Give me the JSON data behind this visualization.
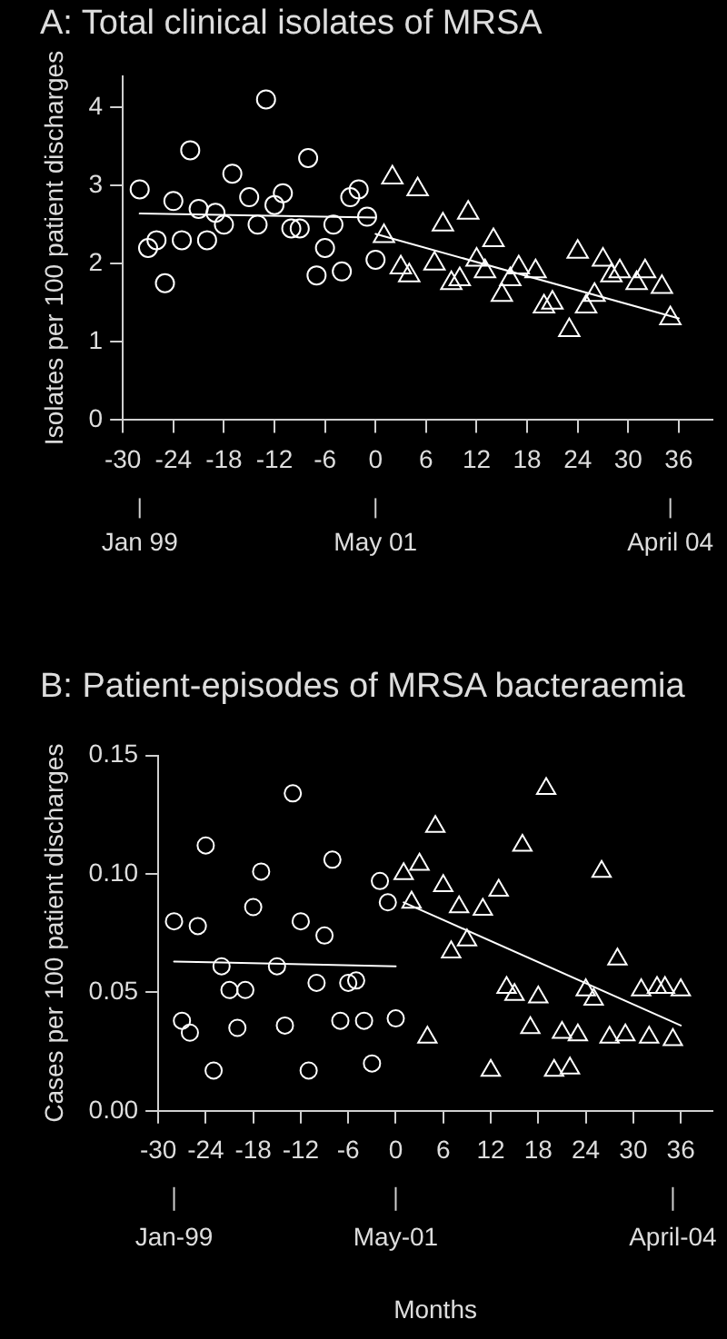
{
  "chart_data": [
    {
      "type": "scatter",
      "title": "A: Total clinical isolates of MRSA",
      "ylabel": "Isolates per 100 patient discharges",
      "xlim": [
        -30,
        40
      ],
      "xticks": [
        -30,
        -24,
        -18,
        -12,
        -6,
        0,
        6,
        12,
        18,
        24,
        30,
        36
      ],
      "ylim": [
        0,
        4.4
      ],
      "yticks": [
        0,
        1,
        2,
        3,
        4
      ],
      "annotations": [
        {
          "text": "Jan 99",
          "x": -28
        },
        {
          "text": "May 01",
          "x": 0
        },
        {
          "text": "April 04",
          "x": 35
        }
      ],
      "series": [
        {
          "marker": "circle",
          "color": "#ffffff",
          "x": [
            -28,
            -27,
            -26,
            -25,
            -24,
            -23,
            -22,
            -21,
            -20,
            -19,
            -18,
            -17,
            -15,
            -14,
            -13,
            -12,
            -11,
            -10,
            -9,
            -8,
            -7,
            -6,
            -5,
            -4,
            -3,
            -2,
            -1,
            0
          ],
          "values": [
            2.95,
            2.2,
            2.3,
            1.75,
            2.8,
            2.3,
            3.45,
            2.7,
            2.3,
            2.65,
            2.5,
            3.15,
            2.85,
            2.5,
            4.1,
            2.75,
            2.9,
            2.45,
            2.45,
            3.35,
            1.85,
            2.2,
            2.5,
            1.9,
            2.85,
            2.95,
            2.6,
            2.05
          ]
        },
        {
          "marker": "triangle",
          "color": "#ffffff",
          "x": [
            1,
            2,
            3,
            4,
            5,
            7,
            8,
            9,
            10,
            11,
            12,
            13,
            14,
            15,
            16,
            17,
            19,
            20,
            21,
            23,
            24,
            25,
            26,
            27,
            28,
            29,
            31,
            32,
            34,
            35
          ],
          "values": [
            2.35,
            3.1,
            1.95,
            1.85,
            2.95,
            2.0,
            2.5,
            1.75,
            1.8,
            2.65,
            2.05,
            1.9,
            2.3,
            1.6,
            1.8,
            1.95,
            1.9,
            1.45,
            1.5,
            1.15,
            2.15,
            1.45,
            1.6,
            2.05,
            1.85,
            1.9,
            1.75,
            1.9,
            1.7,
            1.3
          ]
        },
        {
          "type": "line",
          "marker": "none",
          "color": "#ffffff",
          "x": [
            -28,
            0
          ],
          "values": [
            2.64,
            2.59
          ]
        },
        {
          "type": "line",
          "marker": "none",
          "color": "#ffffff",
          "x": [
            0,
            36
          ],
          "values": [
            2.38,
            1.3
          ]
        }
      ]
    },
    {
      "type": "scatter",
      "title": "B: Patient-episodes of MRSA bacteraemia",
      "ylabel": "Cases per 100 patient discharges",
      "xlabel": "Months",
      "xlim": [
        -30,
        40
      ],
      "xticks": [
        -30,
        -24,
        -18,
        -12,
        -6,
        0,
        6,
        12,
        18,
        24,
        30,
        36
      ],
      "ylim": [
        0,
        0.15
      ],
      "yticks": [
        {
          "value": 0,
          "label": "0.00"
        },
        {
          "value": 0.05,
          "label": "0.05"
        },
        {
          "value": 0.1,
          "label": "0.10"
        },
        {
          "value": 0.15,
          "label": "0.15"
        }
      ],
      "annotations": [
        {
          "text": "Jan-99",
          "x": -28
        },
        {
          "text": "May-01",
          "x": 0
        },
        {
          "text": "April-04",
          "x": 35
        }
      ],
      "series": [
        {
          "marker": "circle",
          "color": "#ffffff",
          "x": [
            -28,
            -27,
            -26,
            -25,
            -24,
            -23,
            -22,
            -21,
            -20,
            -19,
            -18,
            -17,
            -15,
            -14,
            -13,
            -12,
            -11,
            -10,
            -9,
            -8,
            -7,
            -6,
            -5,
            -4,
            -3,
            -2,
            -1,
            0
          ],
          "values": [
            0.08,
            0.038,
            0.033,
            0.078,
            0.112,
            0.017,
            0.061,
            0.051,
            0.035,
            0.051,
            0.086,
            0.101,
            0.061,
            0.036,
            0.134,
            0.08,
            0.017,
            0.054,
            0.074,
            0.106,
            0.038,
            0.054,
            0.055,
            0.038,
            0.02,
            0.097,
            0.088,
            0.039
          ]
        },
        {
          "marker": "triangle",
          "color": "#ffffff",
          "x": [
            1,
            2,
            3,
            4,
            5,
            6,
            7,
            8,
            9,
            11,
            12,
            13,
            14,
            15,
            16,
            17,
            18,
            19,
            20,
            21,
            22,
            23,
            24,
            25,
            26,
            27,
            28,
            29,
            31,
            32,
            33,
            34,
            35,
            36
          ],
          "values": [
            0.1,
            0.088,
            0.104,
            0.031,
            0.12,
            0.095,
            0.067,
            0.086,
            0.072,
            0.085,
            0.017,
            0.093,
            0.052,
            0.049,
            0.112,
            0.035,
            0.048,
            0.136,
            0.017,
            0.033,
            0.018,
            0.032,
            0.051,
            0.047,
            0.101,
            0.031,
            0.064,
            0.032,
            0.051,
            0.031,
            0.052,
            0.052,
            0.03,
            0.051
          ]
        },
        {
          "type": "line",
          "marker": "none",
          "color": "#ffffff",
          "x": [
            -28,
            0
          ],
          "values": [
            0.063,
            0.061
          ]
        },
        {
          "type": "line",
          "marker": "none",
          "color": "#ffffff",
          "x": [
            1,
            36
          ],
          "values": [
            0.088,
            0.036
          ]
        }
      ]
    }
  ]
}
